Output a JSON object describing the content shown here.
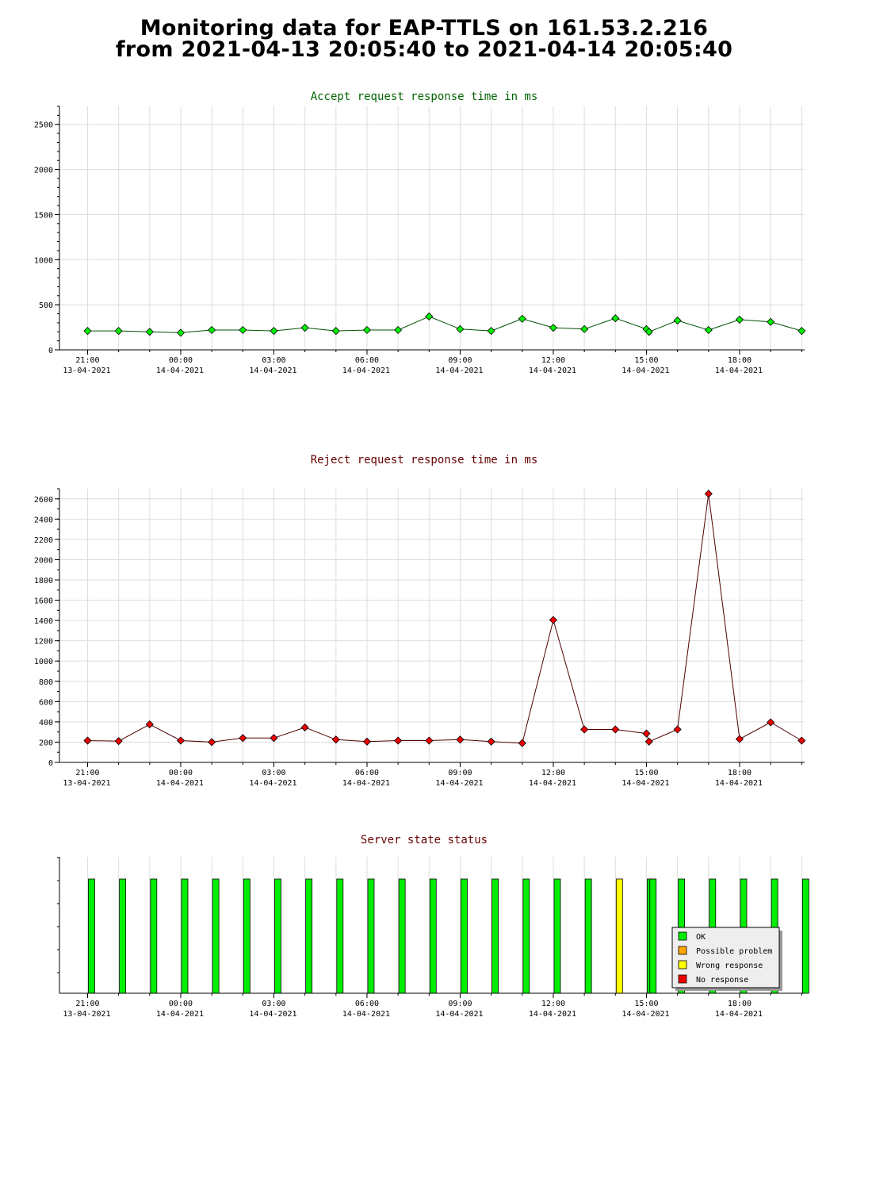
{
  "page": {
    "title_line1": "Monitoring data for EAP-TTLS on 161.53.2.216",
    "title_line2": "from 2021-04-13 20:05:40 to 2021-04-14 20:05:40"
  },
  "colors": {
    "accept_title": "#006400",
    "reject_title": "#660000",
    "accept_marker": "#00ee00",
    "reject_marker": "#ee0000",
    "ok": "#00ee00",
    "possible_problem": "#ffa500",
    "wrong_response": "#ffff00",
    "no_response": "#ee0000",
    "grid": "#dddddd"
  },
  "x_axis": {
    "start": "2021-04-13 20:05:40",
    "end": "2021-04-14 20:05:40",
    "ticks": [
      {
        "time": "21:00",
        "date": "13-04-2021"
      },
      {
        "time": "00:00",
        "date": "14-04-2021"
      },
      {
        "time": "03:00",
        "date": "14-04-2021"
      },
      {
        "time": "06:00",
        "date": "14-04-2021"
      },
      {
        "time": "09:00",
        "date": "14-04-2021"
      },
      {
        "time": "12:00",
        "date": "14-04-2021"
      },
      {
        "time": "15:00",
        "date": "14-04-2021"
      },
      {
        "time": "18:00",
        "date": "14-04-2021"
      }
    ]
  },
  "chart_data": [
    {
      "type": "line",
      "title": "Accept request response time in ms",
      "ylim": [
        0,
        2700
      ],
      "yticks": [
        0,
        500,
        1000,
        1500,
        2000,
        2500
      ],
      "grid": true,
      "x": [
        "2021-04-13 21:00",
        "2021-04-13 22:00",
        "2021-04-13 23:00",
        "2021-04-14 00:00",
        "2021-04-14 01:00",
        "2021-04-14 02:00",
        "2021-04-14 03:00",
        "2021-04-14 04:00",
        "2021-04-14 05:00",
        "2021-04-14 06:00",
        "2021-04-14 07:00",
        "2021-04-14 08:00",
        "2021-04-14 09:00",
        "2021-04-14 10:00",
        "2021-04-14 11:00",
        "2021-04-14 12:00",
        "2021-04-14 13:00",
        "2021-04-14 14:00",
        "2021-04-14 15:00",
        "2021-04-14 15:05",
        "2021-04-14 16:00",
        "2021-04-14 17:00",
        "2021-04-14 18:00",
        "2021-04-14 19:00",
        "2021-04-14 20:00"
      ],
      "values": [
        210,
        210,
        200,
        190,
        220,
        220,
        210,
        245,
        210,
        220,
        220,
        370,
        230,
        210,
        345,
        245,
        230,
        350,
        230,
        200,
        325,
        220,
        335,
        310,
        210
      ]
    },
    {
      "type": "line",
      "title": "Reject request response time in ms",
      "ylim": [
        0,
        2700
      ],
      "yticks": [
        0,
        200,
        400,
        600,
        800,
        1000,
        1200,
        1400,
        1600,
        1800,
        2000,
        2200,
        2400,
        2600
      ],
      "grid": true,
      "x": [
        "2021-04-13 21:00",
        "2021-04-13 22:00",
        "2021-04-13 23:00",
        "2021-04-14 00:00",
        "2021-04-14 01:00",
        "2021-04-14 02:00",
        "2021-04-14 03:00",
        "2021-04-14 04:00",
        "2021-04-14 05:00",
        "2021-04-14 06:00",
        "2021-04-14 07:00",
        "2021-04-14 08:00",
        "2021-04-14 09:00",
        "2021-04-14 10:00",
        "2021-04-14 11:00",
        "2021-04-14 12:00",
        "2021-04-14 13:00",
        "2021-04-14 14:00",
        "2021-04-14 15:00",
        "2021-04-14 15:05",
        "2021-04-14 16:00",
        "2021-04-14 17:00",
        "2021-04-14 18:00",
        "2021-04-14 19:00",
        "2021-04-14 20:00"
      ],
      "values": [
        215,
        210,
        375,
        215,
        200,
        240,
        240,
        345,
        225,
        205,
        215,
        215,
        225,
        205,
        190,
        1405,
        325,
        325,
        285,
        205,
        325,
        2650,
        230,
        395,
        215
      ]
    },
    {
      "type": "bar",
      "title": "Server state status",
      "grid": true,
      "x": [
        "2021-04-13 21:00",
        "2021-04-13 22:00",
        "2021-04-13 23:00",
        "2021-04-14 00:00",
        "2021-04-14 01:00",
        "2021-04-14 02:00",
        "2021-04-14 03:00",
        "2021-04-14 04:00",
        "2021-04-14 05:00",
        "2021-04-14 06:00",
        "2021-04-14 07:00",
        "2021-04-14 08:00",
        "2021-04-14 09:00",
        "2021-04-14 10:00",
        "2021-04-14 11:00",
        "2021-04-14 12:00",
        "2021-04-14 13:00",
        "2021-04-14 14:00",
        "2021-04-14 15:00",
        "2021-04-14 15:05",
        "2021-04-14 16:00",
        "2021-04-14 17:00",
        "2021-04-14 18:00",
        "2021-04-14 19:00",
        "2021-04-14 20:00"
      ],
      "status": [
        "ok",
        "ok",
        "ok",
        "ok",
        "ok",
        "ok",
        "ok",
        "ok",
        "ok",
        "ok",
        "ok",
        "ok",
        "ok",
        "ok",
        "ok",
        "ok",
        "ok",
        "wrong_response",
        "ok",
        "ok",
        "ok",
        "ok",
        "ok",
        "ok",
        "ok"
      ],
      "legend_position": "bottom-right",
      "legend": [
        {
          "key": "ok",
          "label": "OK"
        },
        {
          "key": "possible_problem",
          "label": "Possible problem"
        },
        {
          "key": "wrong_response",
          "label": "Wrong response"
        },
        {
          "key": "no_response",
          "label": "No response"
        }
      ]
    }
  ]
}
